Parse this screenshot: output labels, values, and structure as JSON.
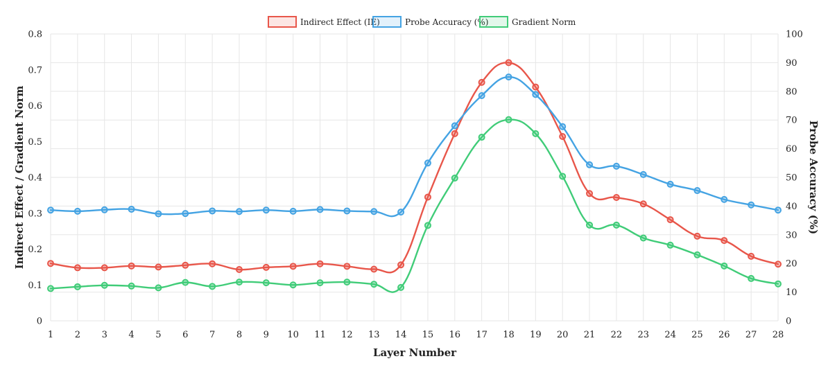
{
  "chart_data": {
    "type": "line",
    "x": [
      1,
      2,
      3,
      4,
      5,
      6,
      7,
      8,
      9,
      10,
      11,
      12,
      13,
      14,
      15,
      16,
      17,
      18,
      19,
      20,
      21,
      22,
      23,
      24,
      25,
      26,
      27,
      28
    ],
    "xlabel": "Layer Number",
    "ylabel_left": "Indirect Effect / Gradient Norm",
    "ylabel_right": "Probe Accuracy (%)",
    "ylim_left": [
      0,
      0.8
    ],
    "ylim_right": [
      0,
      100
    ],
    "yticks_left": [
      "0",
      "0.1",
      "0.2",
      "0.3",
      "0.4",
      "0.5",
      "0.6",
      "0.7",
      "0.8"
    ],
    "yticks_right": [
      "0",
      "10",
      "20",
      "30",
      "40",
      "50",
      "60",
      "70",
      "80",
      "90",
      "100"
    ],
    "grid": true,
    "legend_position": "top-center",
    "series": [
      {
        "name": "Indirect Effect (IE)",
        "axis": "left",
        "color": "#e8564a",
        "values": [
          0.16,
          0.148,
          0.148,
          0.153,
          0.15,
          0.155,
          0.159,
          0.143,
          0.149,
          0.152,
          0.159,
          0.152,
          0.144,
          0.156,
          0.345,
          0.522,
          0.665,
          0.72,
          0.652,
          0.514,
          0.355,
          0.344,
          0.326,
          0.282,
          0.236,
          0.224,
          0.18,
          0.158
        ]
      },
      {
        "name": "Probe Accuracy (%)",
        "axis": "right",
        "color": "#44a3e3",
        "values": [
          38.6,
          38.2,
          38.7,
          38.9,
          37.3,
          37.4,
          38.3,
          38.1,
          38.6,
          38.2,
          38.8,
          38.3,
          38.1,
          37.9,
          55.0,
          68.0,
          78.5,
          85.0,
          78.9,
          67.7,
          54.4,
          53.9,
          51.0,
          47.6,
          45.4,
          42.3,
          40.4,
          38.6
        ]
      },
      {
        "name": "Gradient Norm",
        "axis": "left",
        "color": "#40cc78",
        "values": [
          0.09,
          0.095,
          0.099,
          0.097,
          0.092,
          0.107,
          0.096,
          0.108,
          0.106,
          0.1,
          0.106,
          0.108,
          0.102,
          0.093,
          0.266,
          0.398,
          0.512,
          0.561,
          0.522,
          0.403,
          0.267,
          0.267,
          0.231,
          0.211,
          0.184,
          0.153,
          0.118,
          0.103
        ]
      }
    ]
  }
}
